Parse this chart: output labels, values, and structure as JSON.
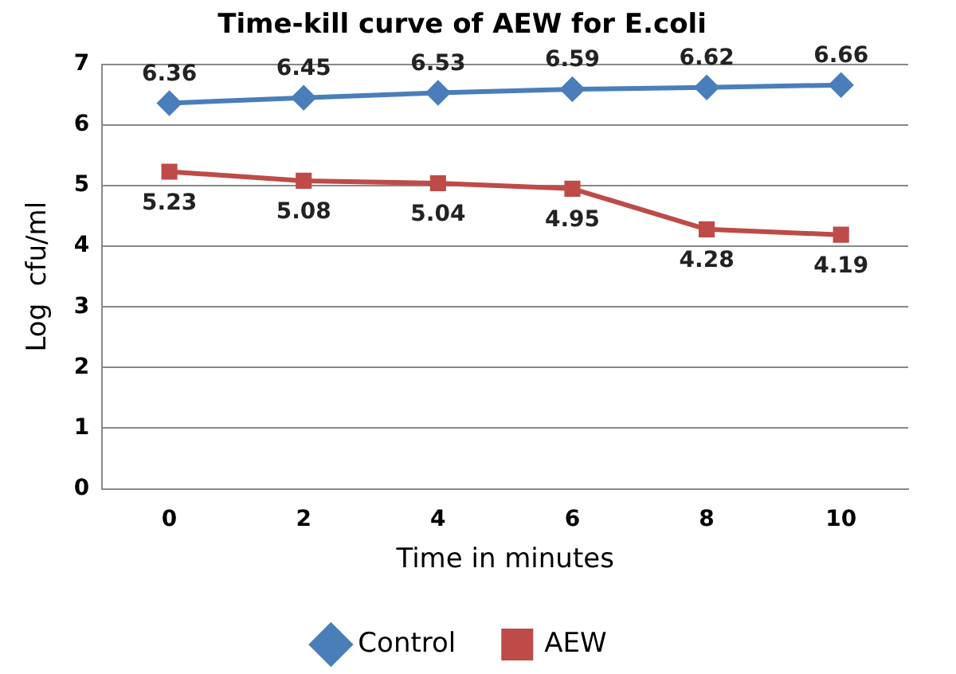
{
  "chart_data": {
    "type": "line",
    "title": "Time-kill curve of AEW for E.coli",
    "xlabel": "Time in minutes",
    "ylabel": "Log  cfu/ml",
    "categories": [
      "0",
      "2",
      "4",
      "6",
      "8",
      "10"
    ],
    "series": [
      {
        "name": "Control",
        "color": "#4a7ebb",
        "marker": "diamond",
        "values": [
          6.36,
          6.45,
          6.53,
          6.59,
          6.62,
          6.66
        ]
      },
      {
        "name": "AEW",
        "color": "#be4b48",
        "marker": "square",
        "values": [
          5.23,
          5.08,
          5.04,
          4.95,
          4.28,
          4.19
        ]
      }
    ],
    "ylim": [
      0,
      7
    ],
    "yticks": [
      0,
      1,
      2,
      3,
      4,
      5,
      6,
      7
    ],
    "grid": "y",
    "legend": "bottom",
    "data_labels": true
  }
}
